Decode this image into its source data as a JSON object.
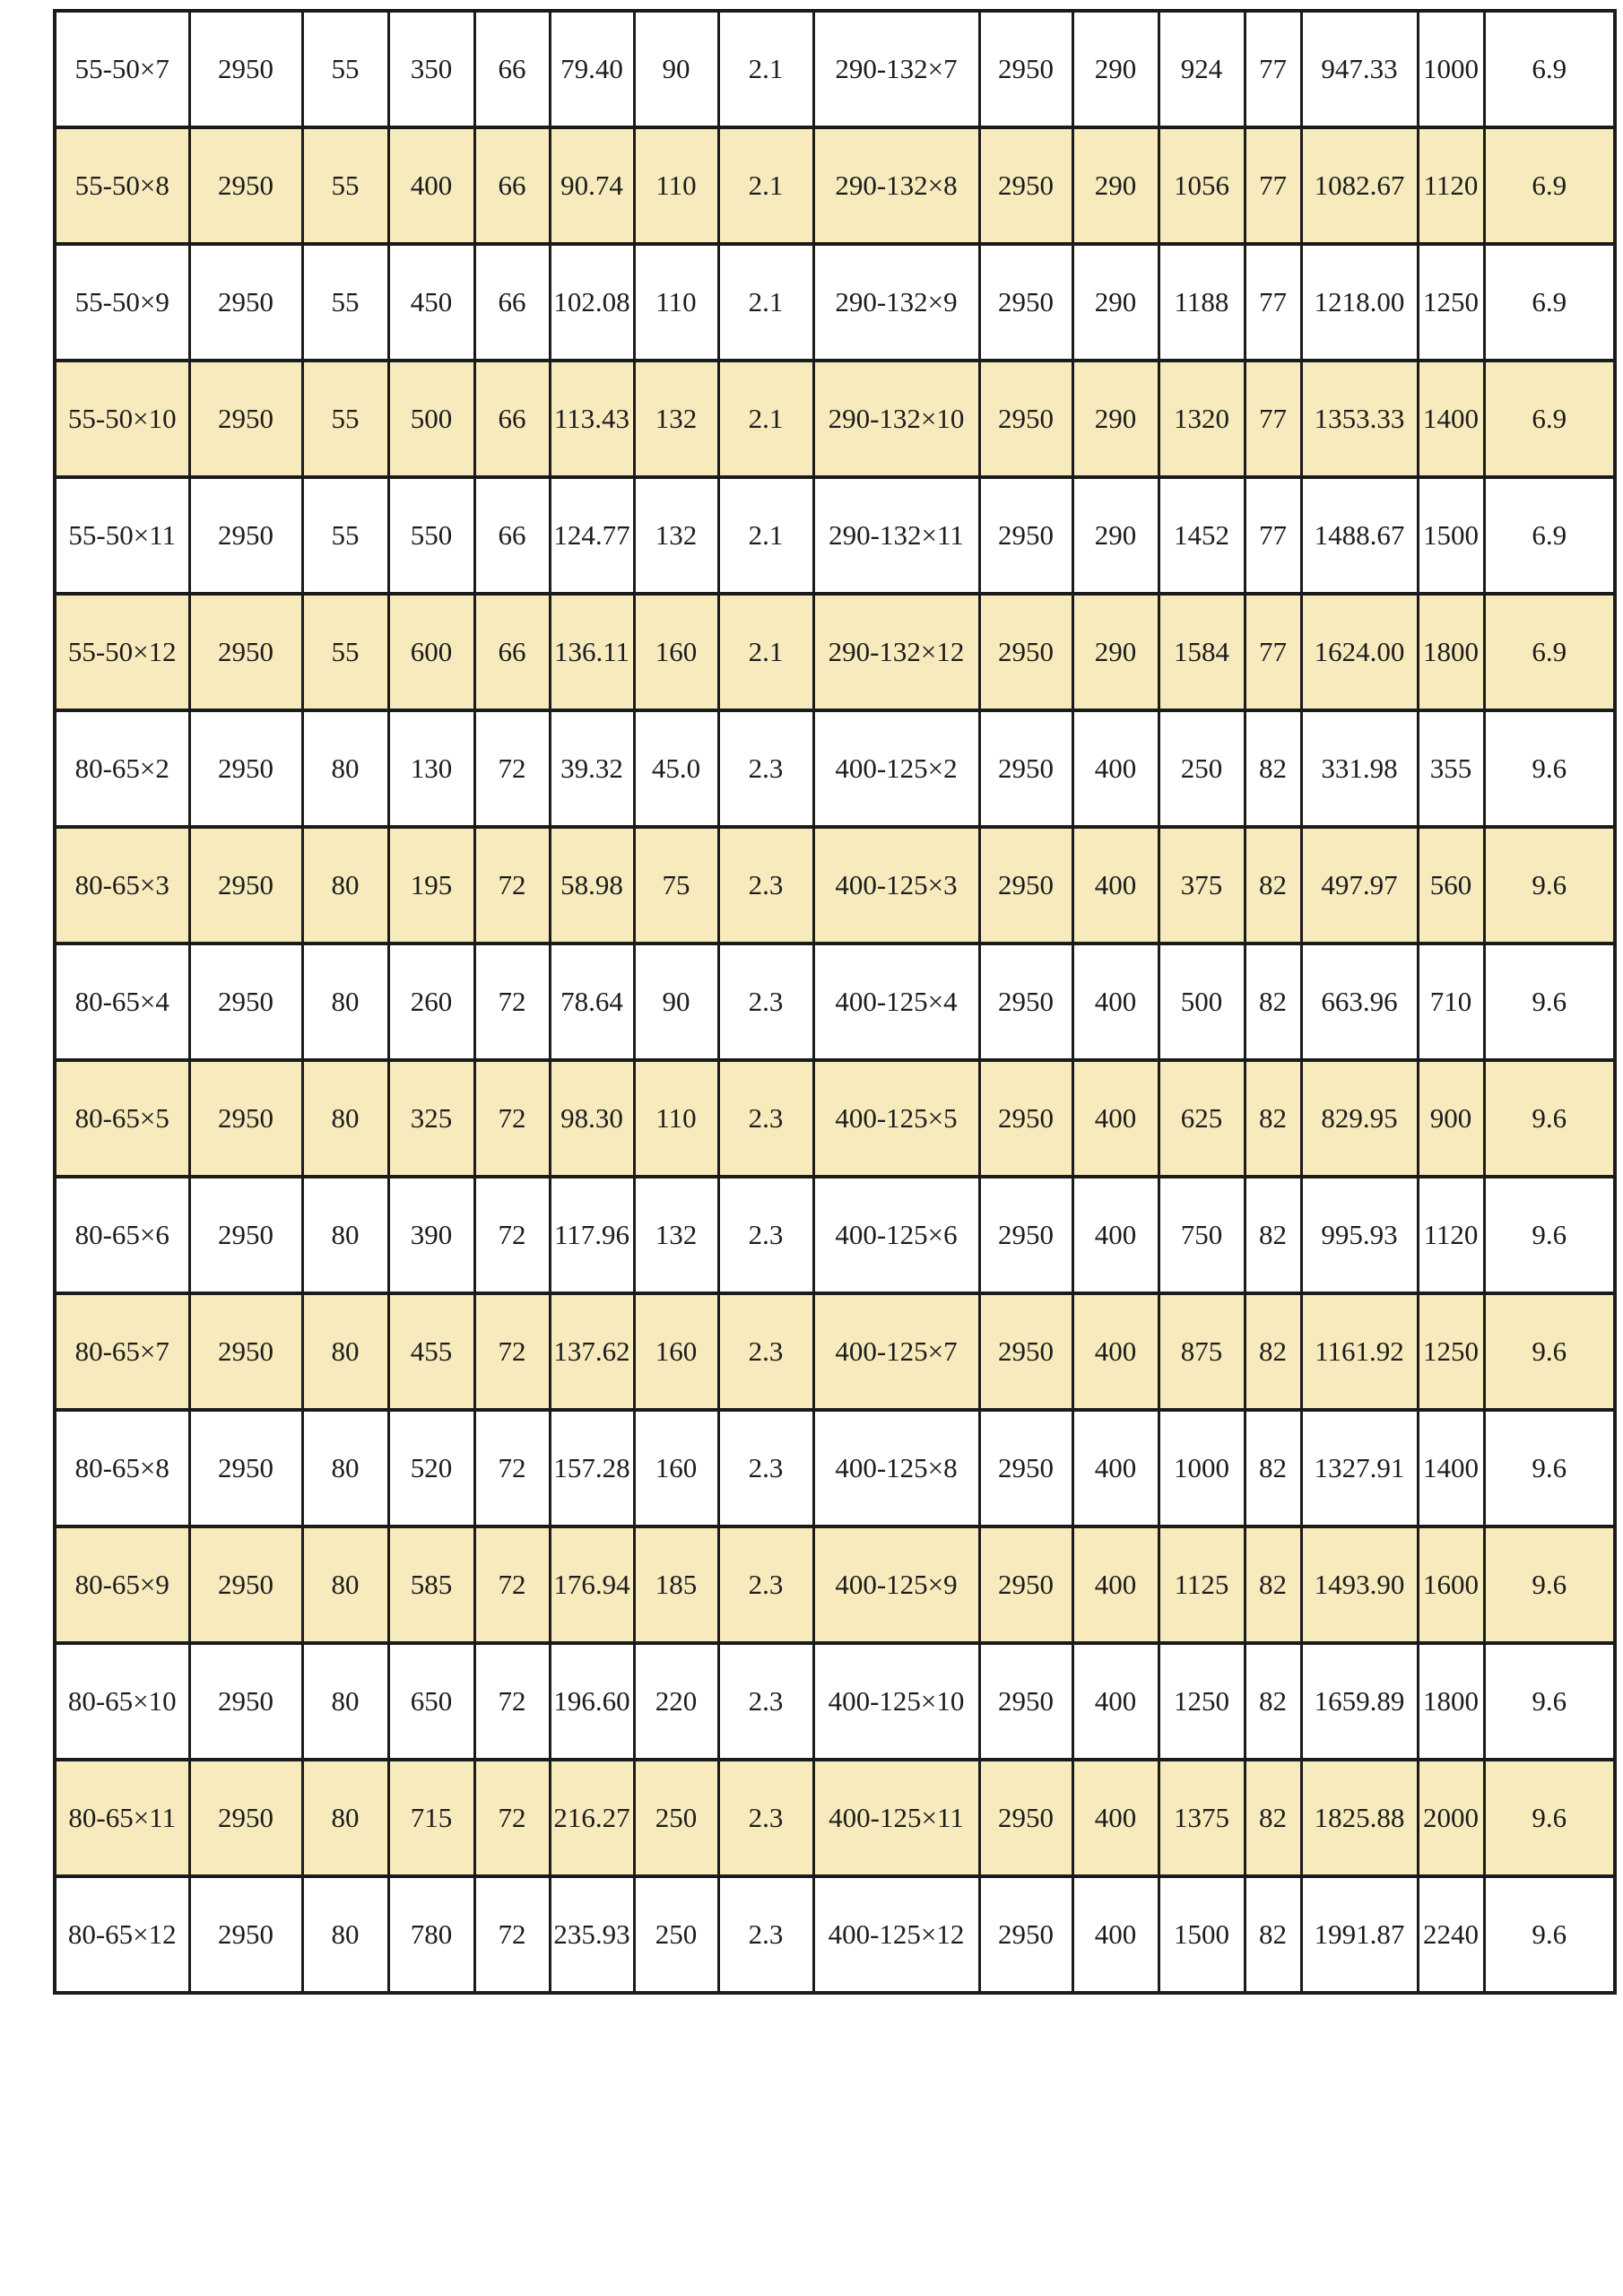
{
  "colors": {
    "row_stripe": "#F7EABC",
    "border": "#1B1B1B",
    "text": "#1C1C1C",
    "background": "#FFFFFF"
  },
  "table": {
    "rows": [
      {
        "cells": [
          "55-50×7",
          "2950",
          "55",
          "350",
          "66",
          "79.40",
          "90",
          "2.1",
          "290-132×7",
          "2950",
          "290",
          "924",
          "77",
          "947.33",
          "1000",
          "6.9"
        ]
      },
      {
        "cells": [
          "55-50×8",
          "2950",
          "55",
          "400",
          "66",
          "90.74",
          "110",
          "2.1",
          "290-132×8",
          "2950",
          "290",
          "1056",
          "77",
          "1082.67",
          "1120",
          "6.9"
        ]
      },
      {
        "cells": [
          "55-50×9",
          "2950",
          "55",
          "450",
          "66",
          "102.08",
          "110",
          "2.1",
          "290-132×9",
          "2950",
          "290",
          "1188",
          "77",
          "1218.00",
          "1250",
          "6.9"
        ]
      },
      {
        "cells": [
          "55-50×10",
          "2950",
          "55",
          "500",
          "66",
          "113.43",
          "132",
          "2.1",
          "290-132×10",
          "2950",
          "290",
          "1320",
          "77",
          "1353.33",
          "1400",
          "6.9"
        ]
      },
      {
        "cells": [
          "55-50×11",
          "2950",
          "55",
          "550",
          "66",
          "124.77",
          "132",
          "2.1",
          "290-132×11",
          "2950",
          "290",
          "1452",
          "77",
          "1488.67",
          "1500",
          "6.9"
        ]
      },
      {
        "cells": [
          "55-50×12",
          "2950",
          "55",
          "600",
          "66",
          "136.11",
          "160",
          "2.1",
          "290-132×12",
          "2950",
          "290",
          "1584",
          "77",
          "1624.00",
          "1800",
          "6.9"
        ]
      },
      {
        "cells": [
          "80-65×2",
          "2950",
          "80",
          "130",
          "72",
          "39.32",
          "45.0",
          "2.3",
          "400-125×2",
          "2950",
          "400",
          "250",
          "82",
          "331.98",
          "355",
          "9.6"
        ]
      },
      {
        "cells": [
          "80-65×3",
          "2950",
          "80",
          "195",
          "72",
          "58.98",
          "75",
          "2.3",
          "400-125×3",
          "2950",
          "400",
          "375",
          "82",
          "497.97",
          "560",
          "9.6"
        ]
      },
      {
        "cells": [
          "80-65×4",
          "2950",
          "80",
          "260",
          "72",
          "78.64",
          "90",
          "2.3",
          "400-125×4",
          "2950",
          "400",
          "500",
          "82",
          "663.96",
          "710",
          "9.6"
        ]
      },
      {
        "cells": [
          "80-65×5",
          "2950",
          "80",
          "325",
          "72",
          "98.30",
          "110",
          "2.3",
          "400-125×5",
          "2950",
          "400",
          "625",
          "82",
          "829.95",
          "900",
          "9.6"
        ]
      },
      {
        "cells": [
          "80-65×6",
          "2950",
          "80",
          "390",
          "72",
          "117.96",
          "132",
          "2.3",
          "400-125×6",
          "2950",
          "400",
          "750",
          "82",
          "995.93",
          "1120",
          "9.6"
        ]
      },
      {
        "cells": [
          "80-65×7",
          "2950",
          "80",
          "455",
          "72",
          "137.62",
          "160",
          "2.3",
          "400-125×7",
          "2950",
          "400",
          "875",
          "82",
          "1161.92",
          "1250",
          "9.6"
        ]
      },
      {
        "cells": [
          "80-65×8",
          "2950",
          "80",
          "520",
          "72",
          "157.28",
          "160",
          "2.3",
          "400-125×8",
          "2950",
          "400",
          "1000",
          "82",
          "1327.91",
          "1400",
          "9.6"
        ]
      },
      {
        "cells": [
          "80-65×9",
          "2950",
          "80",
          "585",
          "72",
          "176.94",
          "185",
          "2.3",
          "400-125×9",
          "2950",
          "400",
          "1125",
          "82",
          "1493.90",
          "1600",
          "9.6"
        ]
      },
      {
        "cells": [
          "80-65×10",
          "2950",
          "80",
          "650",
          "72",
          "196.60",
          "220",
          "2.3",
          "400-125×10",
          "2950",
          "400",
          "1250",
          "82",
          "1659.89",
          "1800",
          "9.6"
        ]
      },
      {
        "cells": [
          "80-65×11",
          "2950",
          "80",
          "715",
          "72",
          "216.27",
          "250",
          "2.3",
          "400-125×11",
          "2950",
          "400",
          "1375",
          "82",
          "1825.88",
          "2000",
          "9.6"
        ]
      },
      {
        "cells": [
          "80-65×12",
          "2950",
          "80",
          "780",
          "72",
          "235.93",
          "250",
          "2.3",
          "400-125×12",
          "2950",
          "400",
          "1500",
          "82",
          "1991.87",
          "2240",
          "9.6"
        ]
      }
    ]
  }
}
